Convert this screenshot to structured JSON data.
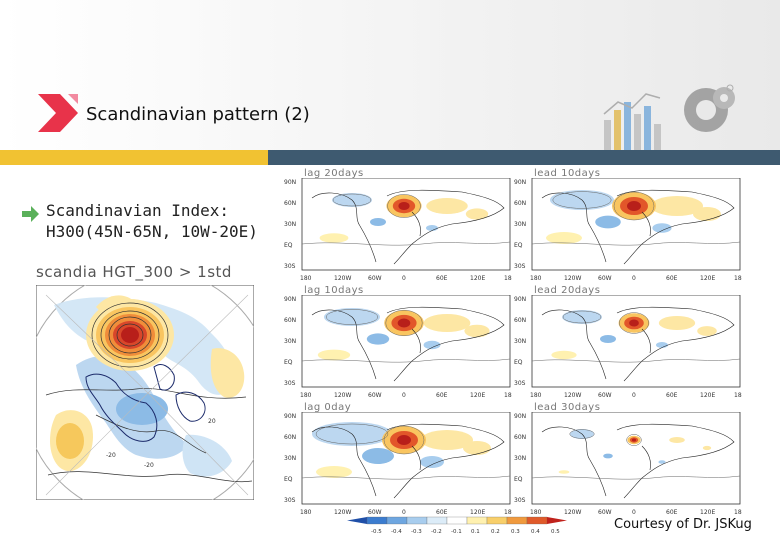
{
  "slide": {
    "title": "Scandinavian pattern (2)",
    "index_line1": "Scandinavian Index:",
    "index_line2": "H300(45N-65N, 10W-20E)",
    "composite_title": "scandia HGT_300 > 1std",
    "credit": "Courtesy of Dr. JSKug"
  },
  "colors": {
    "yellow_bar": "#f1c232",
    "navy_bar": "#3e5a70",
    "accent_red": "#e8334a",
    "bullet_green": "#5ab05a"
  },
  "polar_map": {
    "contour_labels": [
      "20",
      "-20",
      "-20"
    ]
  },
  "lag_panels": [
    {
      "label": "lag 20days",
      "warm_strength": 0.8,
      "cool_strength": 0.5
    },
    {
      "label": "lead 10days",
      "warm_strength": 1.0,
      "cool_strength": 0.8
    },
    {
      "label": "lag 10days",
      "warm_strength": 0.9,
      "cool_strength": 0.7
    },
    {
      "label": "lead 20days",
      "warm_strength": 0.7,
      "cool_strength": 0.5
    },
    {
      "label": "lag 0day",
      "warm_strength": 1.0,
      "cool_strength": 1.0
    },
    {
      "label": "lead 30days",
      "warm_strength": 0.3,
      "cool_strength": 0.3
    }
  ],
  "map_axes": {
    "lat_labels": [
      "90N",
      "60N",
      "30N",
      "EQ",
      "30S"
    ],
    "lon_labels": [
      "180",
      "120W",
      "60W",
      "0",
      "60E",
      "120E",
      "180"
    ]
  },
  "colorbar": {
    "ticks": [
      "-0.5",
      "-0.4",
      "-0.3",
      "-0.2",
      "-0.1",
      "0.1",
      "0.2",
      "0.3",
      "0.4",
      "0.5"
    ],
    "colors": [
      "#1f4fa8",
      "#3b7ccf",
      "#6ea6e0",
      "#a8cdee",
      "#dcecf8",
      "#ffffff",
      "#fff1b0",
      "#f8cf6a",
      "#f09a3e",
      "#e05a2a",
      "#c0221c"
    ]
  }
}
